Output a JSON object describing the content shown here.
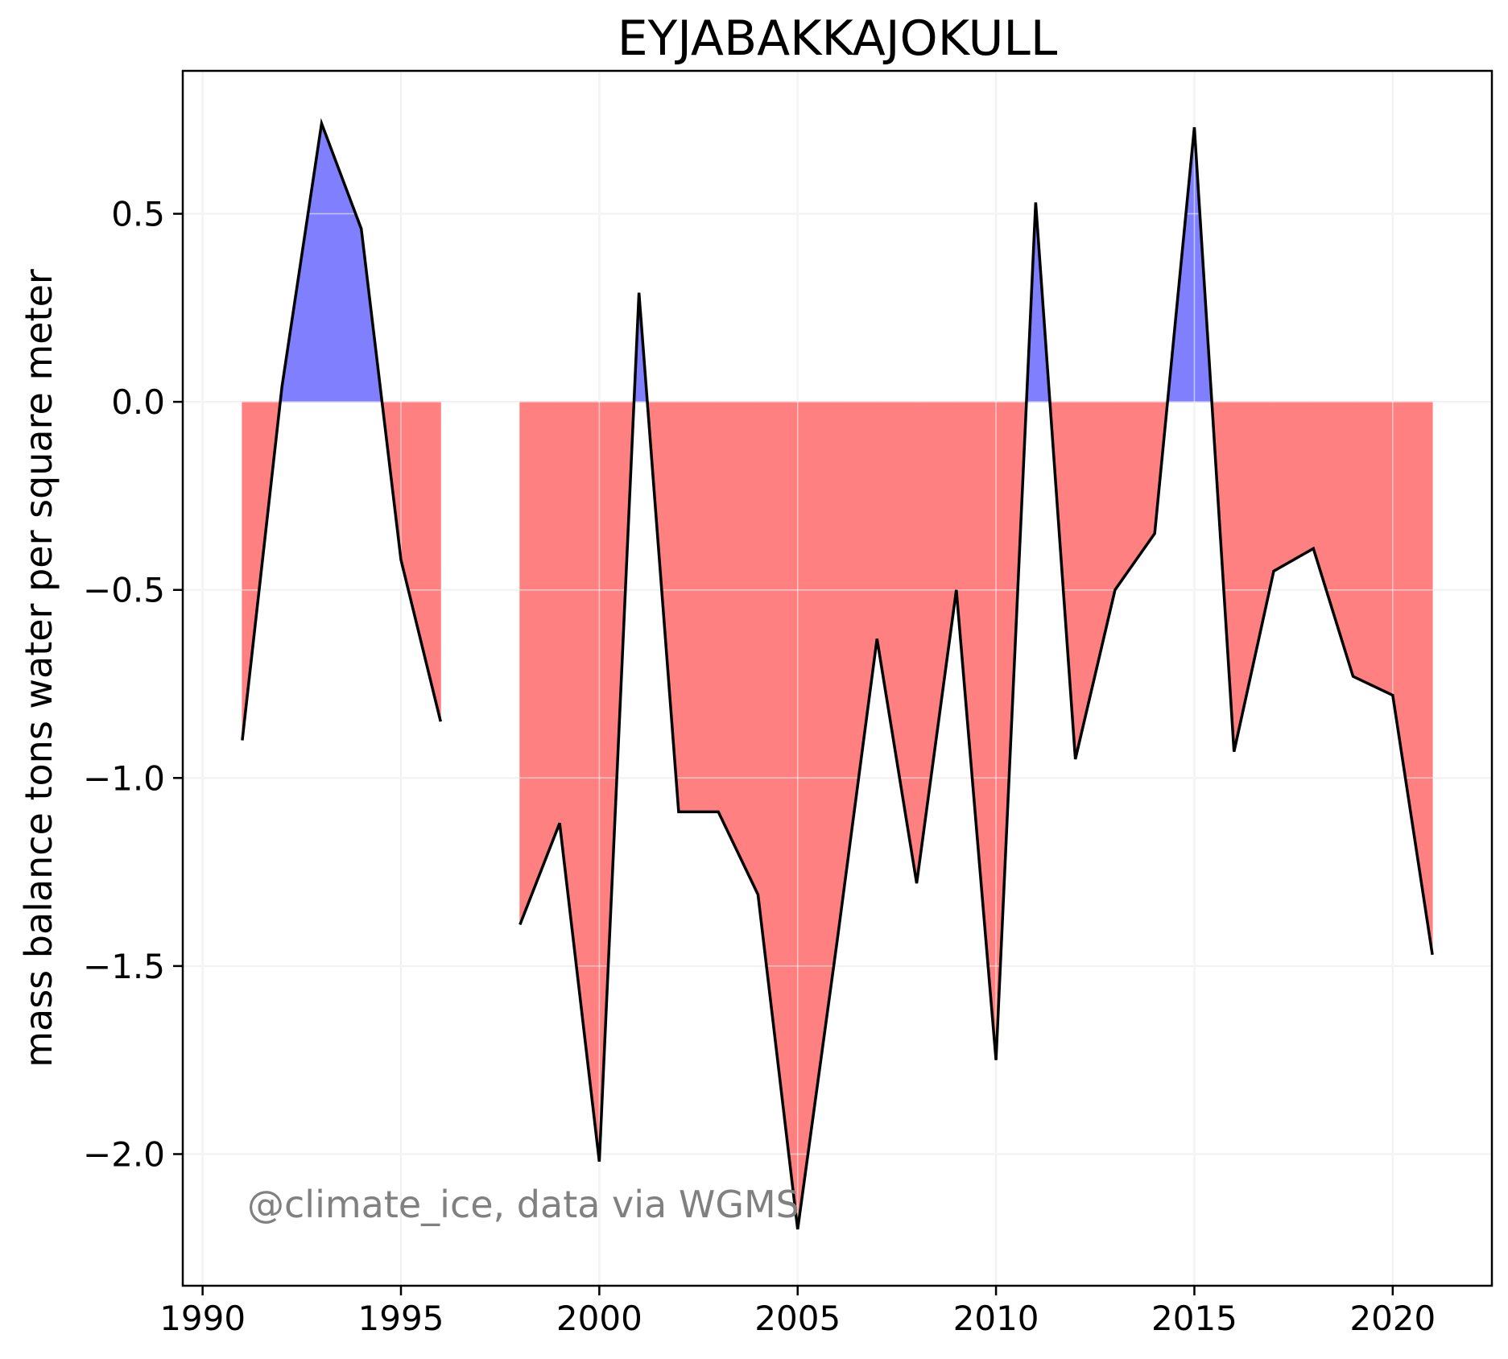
{
  "chart_data": {
    "type": "area",
    "title": "EYJABAKKAJOKULL",
    "xlabel": "",
    "ylabel": "mass balance tons water per square meter",
    "annotation": "@climate_ice, data via WGMS",
    "xlim": [
      1989.5,
      2022.5
    ],
    "ylim": [
      -2.35,
      0.88
    ],
    "x_ticks": [
      1990,
      1995,
      2000,
      2005,
      2010,
      2015,
      2020
    ],
    "x_tick_labels": [
      "1990",
      "1995",
      "2000",
      "2005",
      "2010",
      "2015",
      "2020"
    ],
    "y_ticks": [
      0.5,
      0.0,
      -0.5,
      -1.0,
      -1.5,
      -2.0
    ],
    "y_tick_labels": [
      "0.5",
      "0.0",
      "−0.5",
      "−1.0",
      "−1.5",
      "−2.0"
    ],
    "grid": true,
    "positive_color": "#8080ff",
    "negative_color": "#ff8080",
    "line_color": "#000000",
    "series": [
      {
        "x": [
          1991,
          1992,
          1993,
          1994,
          1995,
          1996
        ],
        "values": [
          -0.9,
          0.04,
          0.74,
          0.46,
          -0.42,
          -0.85
        ]
      },
      {
        "x": [
          1998,
          1999,
          2000,
          2001,
          2002,
          2003,
          2004,
          2005,
          2006,
          2007,
          2008,
          2009,
          2010,
          2011,
          2012,
          2013,
          2014,
          2015,
          2016,
          2017,
          2018,
          2019,
          2020,
          2021
        ],
        "values": [
          -1.39,
          -1.12,
          -2.02,
          0.29,
          -1.09,
          -1.09,
          -1.31,
          -2.2,
          -1.43,
          -0.63,
          -1.28,
          -0.5,
          -1.75,
          0.53,
          -0.95,
          -0.5,
          -0.35,
          0.73,
          -0.93,
          -0.45,
          -0.39,
          -0.73,
          -0.78,
          -1.47
        ]
      }
    ]
  }
}
